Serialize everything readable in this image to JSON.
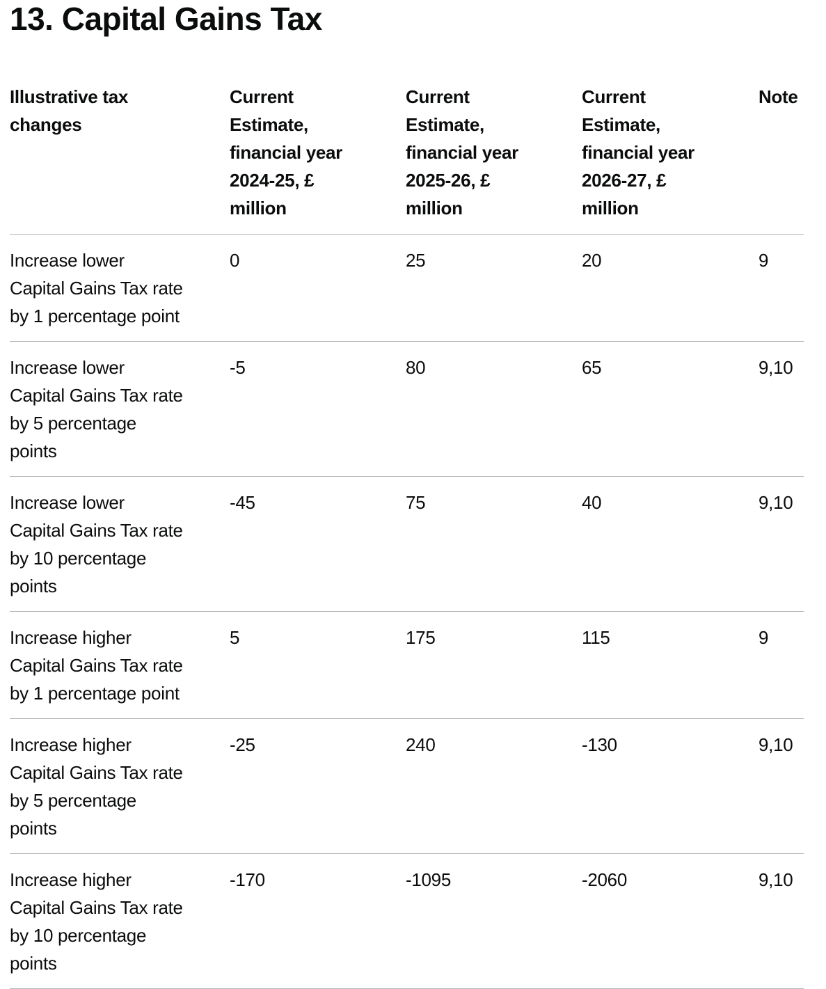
{
  "page": {
    "title": "13. Capital Gains Tax"
  },
  "colors": {
    "text": "#0b0c0c",
    "divider": "#b1b4b6",
    "background": "#ffffff"
  },
  "table": {
    "columns": [
      {
        "label": "Illustrative tax\nchanges"
      },
      {
        "label": "Current\nEstimate,\nfinancial year\n2024-25, £\nmillion"
      },
      {
        "label": "Current\nEstimate,\nfinancial year\n2025-26, £\nmillion"
      },
      {
        "label": "Current\nEstimate,\nfinancial year\n2026-27, £\nmillion"
      },
      {
        "label": "Note"
      }
    ],
    "rows": [
      {
        "change": "Increase lower\nCapital Gains Tax rate\nby 1 percentage point",
        "fy_2024_25": "0",
        "fy_2025_26": "25",
        "fy_2026_27": "20",
        "note": "9"
      },
      {
        "change": "Increase lower\nCapital Gains Tax rate\nby 5 percentage\npoints",
        "fy_2024_25": "-5",
        "fy_2025_26": "80",
        "fy_2026_27": "65",
        "note": "9,10"
      },
      {
        "change": "Increase lower\nCapital Gains Tax rate\nby 10 percentage\npoints",
        "fy_2024_25": "-45",
        "fy_2025_26": "75",
        "fy_2026_27": "40",
        "note": "9,10"
      },
      {
        "change": "Increase higher\nCapital Gains Tax rate\nby 1 percentage point",
        "fy_2024_25": "5",
        "fy_2025_26": "175",
        "fy_2026_27": "115",
        "note": "9"
      },
      {
        "change": "Increase higher\nCapital Gains Tax rate\nby 5 percentage\npoints",
        "fy_2024_25": "-25",
        "fy_2025_26": "240",
        "fy_2026_27": "-130",
        "note": "9,10"
      },
      {
        "change": "Increase higher\nCapital Gains Tax rate\nby 10 percentage\npoints",
        "fy_2024_25": "-170",
        "fy_2025_26": "-1095",
        "fy_2026_27": "-2060",
        "note": "9,10"
      }
    ]
  }
}
